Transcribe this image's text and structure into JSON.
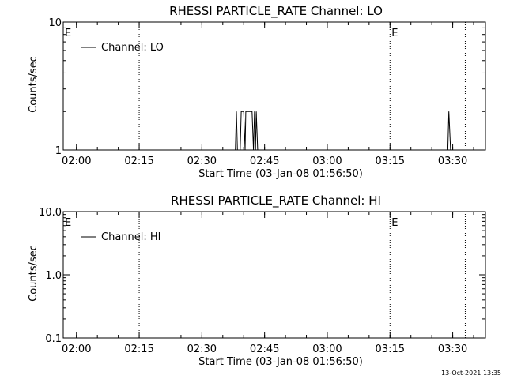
{
  "footer": {
    "timestamp": "13-Oct-2021 13:35"
  },
  "chart_data": [
    {
      "type": "line",
      "title": "RHESSI PARTICLE_RATE Channel: LO",
      "xlabel": "Start Time (03-Jan-08 01:56:50)",
      "ylabel": "Counts/sec",
      "y_scale": "log",
      "ylim": [
        1,
        10
      ],
      "y_ticks": [
        "1",
        "10"
      ],
      "xlim": [
        "01:56:50",
        "03:37:50"
      ],
      "x_ticks": [
        "02:00",
        "02:15",
        "02:30",
        "02:45",
        "03:00",
        "03:15",
        "03:30"
      ],
      "vlines": [
        "02:15",
        "03:15",
        "03:33"
      ],
      "markers": [
        {
          "text": "E",
          "at": "01:56:50"
        },
        {
          "text": "E",
          "at": "03:15"
        }
      ],
      "legend": {
        "position": "top-left",
        "entries": [
          "Channel: LO"
        ]
      },
      "series": [
        {
          "name": "Channel: LO",
          "points": [
            [
              "02:38:00",
              1
            ],
            [
              "02:38:15",
              2
            ],
            [
              "02:38:30",
              1
            ],
            [
              "02:39:10",
              1
            ],
            [
              "02:39:25",
              2
            ],
            [
              "02:40:00",
              2
            ],
            [
              "02:40:20",
              1
            ],
            [
              "02:40:30",
              2
            ],
            [
              "02:42:00",
              2
            ],
            [
              "02:42:20",
              1
            ],
            [
              "02:42:35",
              2
            ],
            [
              "02:42:50",
              1
            ],
            [
              "02:43:00",
              2
            ],
            [
              "02:43:20",
              1
            ],
            [
              "03:28:50",
              1
            ],
            [
              "03:29:05",
              2
            ],
            [
              "03:29:30",
              1
            ]
          ]
        }
      ]
    },
    {
      "type": "line",
      "title": "RHESSI PARTICLE_RATE Channel: HI",
      "xlabel": "Start Time (03-Jan-08 01:56:50)",
      "ylabel": "Counts/sec",
      "y_scale": "log",
      "ylim": [
        0.1,
        10
      ],
      "y_ticks": [
        "0.1",
        "1.0",
        "10.0"
      ],
      "xlim": [
        "01:56:50",
        "03:37:50"
      ],
      "x_ticks": [
        "02:00",
        "02:15",
        "02:30",
        "02:45",
        "03:00",
        "03:15",
        "03:30"
      ],
      "vlines": [
        "02:15",
        "03:15",
        "03:33"
      ],
      "markers": [
        {
          "text": "E",
          "at": "01:56:50"
        },
        {
          "text": "E",
          "at": "03:15"
        }
      ],
      "legend": {
        "position": "top-left",
        "entries": [
          "Channel: HI"
        ]
      },
      "series": [
        {
          "name": "Channel: HI",
          "points": []
        }
      ]
    }
  ]
}
